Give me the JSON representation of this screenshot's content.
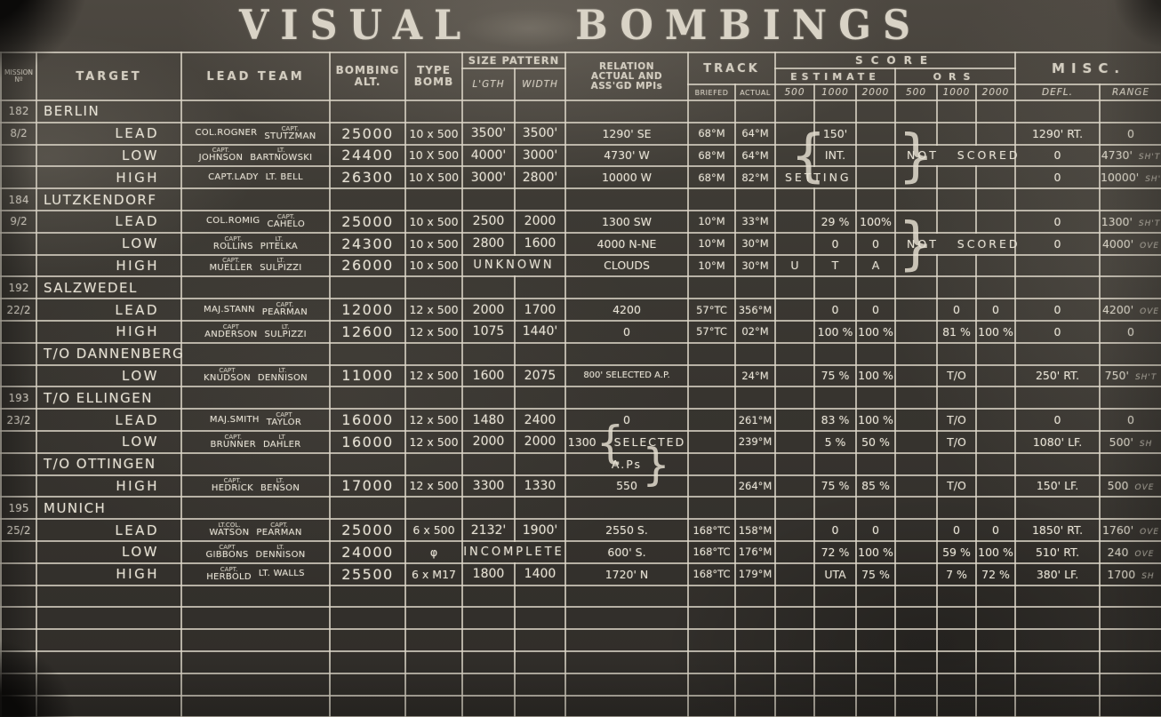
{
  "title": "VISUAL BOMBINGS",
  "colors": {
    "board": "#37342f",
    "chalk": "#e6e1d4",
    "grid_line": "#dcd6c8"
  },
  "header": {
    "mission_line1": "MISSION",
    "mission_line2": "Nº",
    "target": "TARGET",
    "lead_team": "LEAD TEAM",
    "bombing_alt_1": "BOMBING",
    "bombing_alt_2": "ALT.",
    "type_bomb_1": "TYPE",
    "type_bomb_2": "BOMB",
    "size_pattern": "SIZE PATTERN",
    "lgth": "L'GTH",
    "width": "WIDTH",
    "relation_1": "RELATION",
    "relation_2": "ACTUAL AND",
    "relation_3": "ASS'GD MPIs",
    "track": "TRACK",
    "briefed": "BRIEFED",
    "actual": "ACTUAL",
    "score": "SCORE",
    "estimate": "ESTIMATE",
    "ors": "ORS",
    "d500": "500",
    "d1000": "1000",
    "d2000": "2000",
    "misc": "MISC.",
    "defl": "DEFL.",
    "range": "RANGE"
  },
  "rows": [
    {
      "type": "section",
      "mission": "182",
      "target": "BERLIN"
    },
    {
      "type": "data",
      "mission": "8/2",
      "role": "LEAD",
      "team": [
        [
          "",
          "COL.ROGNER"
        ],
        [
          "CAPT.",
          "STUTZMAN"
        ]
      ],
      "alt": "25000",
      "bomb": "10 x 500",
      "lgth": "3500'",
      "width": "3500'",
      "rel": "1290' SE",
      "brf": "68°M",
      "act": "64°M",
      "e1000": "150'",
      "defl": "1290' RT.",
      "rng": "0"
    },
    {
      "type": "data",
      "mission": "",
      "role": "LOW",
      "team": [
        [
          "CAPT.",
          "JOHNSON"
        ],
        [
          "LT.",
          "BARTNOWSKI"
        ]
      ],
      "alt": "24400",
      "bomb": "10 X 500",
      "lgth": "4000'",
      "width": "3000'",
      "rel": "4730' W",
      "brf": "68°M",
      "act": "64°M",
      "ebl": true,
      "e1000": "INT.",
      "ors": "NOT SCORED",
      "orsbr": true,
      "defl": "0",
      "rng": "4730' SH'T"
    },
    {
      "type": "data",
      "mission": "",
      "role": "HIGH",
      "team": [
        [
          "",
          "CAPT.LADY"
        ],
        [
          "",
          "LT. BELL"
        ]
      ],
      "alt": "26300",
      "bomb": "10 X 500",
      "lgth": "3000'",
      "width": "2800'",
      "rel": "10000 W",
      "brf": "68°M",
      "act": "82°M",
      "e_span": "SETTING",
      "e_cols": 2,
      "defl": "0",
      "rng": "10000' SH'T"
    },
    {
      "type": "section",
      "mission": "184",
      "target": "LUTZKENDORF"
    },
    {
      "type": "data",
      "mission": "9/2",
      "role": "LEAD",
      "team": [
        [
          "",
          "COL.ROMIG"
        ],
        [
          "CAPT.",
          "CAHELO"
        ]
      ],
      "alt": "25000",
      "bomb": "10 x 500",
      "lgth": "2500",
      "width": "2000",
      "rel": "1300 SW",
      "brf": "10°M",
      "act": "33°M",
      "e1000": "29 %",
      "e2000": "100%",
      "defl": "0",
      "rng": "1300' SH'T"
    },
    {
      "type": "data",
      "mission": "",
      "role": "LOW",
      "team": [
        [
          "CAPT.",
          "ROLLINS"
        ],
        [
          "LT.",
          "PITELKA"
        ]
      ],
      "alt": "24300",
      "bomb": "10 x 500",
      "lgth": "2800",
      "width": "1600",
      "rel": "4000 N-NE",
      "brf": "10°M",
      "act": "30°M",
      "e1000": "0",
      "e2000": "0",
      "ors": "NOT SCORED",
      "orsbr": true,
      "defl": "0",
      "rng": "4000' OVE"
    },
    {
      "type": "data",
      "mission": "",
      "role": "HIGH",
      "team": [
        [
          "CAPT.",
          "MUELLER"
        ],
        [
          "LT.",
          "SULPIZZI"
        ]
      ],
      "alt": "26000",
      "bomb": "10 x 500",
      "size_span": "UNKNOWN",
      "rel": "CLOUDS",
      "brf": "10°M",
      "act": "30°M",
      "e500": "U",
      "e1000": "T",
      "e2000": "A",
      "defl": "",
      "rng": ""
    },
    {
      "type": "section",
      "mission": "192",
      "target": "SALZWEDEL"
    },
    {
      "type": "data",
      "mission": "22/2",
      "role": "LEAD",
      "team": [
        [
          "",
          "MAJ.STANN"
        ],
        [
          "CAPT.",
          "PEARMAN"
        ]
      ],
      "alt": "12000",
      "bomb": "12 x 500",
      "lgth": "2000",
      "width": "1700",
      "rel": "4200",
      "brf": "57°TC",
      "act": "356°M",
      "e1000": "0",
      "e2000": "0",
      "o1000": "0",
      "o2000": "0",
      "defl": "0",
      "rng": "4200' OVE"
    },
    {
      "type": "data",
      "mission": "",
      "role": "HIGH",
      "team": [
        [
          "CAPT",
          "ANDERSON"
        ],
        [
          "LT.",
          "SULPIZZI"
        ]
      ],
      "alt": "12600",
      "bomb": "12 x 500",
      "lgth": "1075",
      "width": "1440'",
      "rel": "0",
      "brf": "57°TC",
      "act": "02°M",
      "e1000": "100 %",
      "e2000": "100 %",
      "o1000": "81 %",
      "o2000": "100 %",
      "defl": "0",
      "rng": "0"
    },
    {
      "type": "section",
      "mission": "",
      "target": "T/O DANNENBERG"
    },
    {
      "type": "data",
      "mission": "",
      "role": "LOW",
      "team": [
        [
          "CAPT",
          "KNUDSON"
        ],
        [
          "LT.",
          "DENNISON"
        ]
      ],
      "alt": "11000",
      "bomb": "12 x 500",
      "lgth": "1600",
      "width": "2075",
      "rel": "800' SELECTED A.P.",
      "brf": "",
      "act": "24°M",
      "e1000": "75 %",
      "e2000": "100 %",
      "o1000": "T/O",
      "defl": "250' RT.",
      "rng": "750' SH'T"
    },
    {
      "type": "section",
      "mission": "193",
      "target": "T/O ELLINGEN"
    },
    {
      "type": "data",
      "mission": "23/2",
      "role": "LEAD",
      "team": [
        [
          "",
          "MAJ.SMITH"
        ],
        [
          "CAPT",
          "TAYLOR"
        ]
      ],
      "alt": "16000",
      "bomb": "12 x 500",
      "lgth": "1480",
      "width": "2400",
      "rel": "0",
      "brf": "",
      "act": "261°M",
      "e1000": "83 %",
      "e2000": "100 %",
      "o1000": "T/O",
      "defl": "0",
      "rng": "0"
    },
    {
      "type": "data",
      "mission": "",
      "role": "LOW",
      "team": [
        [
          "CAPT.",
          "BRUNNER"
        ],
        [
          "LT",
          "DAHLER"
        ]
      ],
      "alt": "16000",
      "bomb": "12 x 500",
      "lgth": "2000",
      "width": "2000",
      "rel": "1300",
      "relbr": "{",
      "rel2": "SELECTED",
      "brf": "",
      "act": "239°M",
      "e1000": "5 %",
      "e2000": "50 %",
      "o1000": "T/O",
      "defl": "1080' LF.",
      "rng": "500' SH"
    },
    {
      "type": "section",
      "mission": "",
      "target": "T/O OTTINGEN",
      "rel2": "A.Ps",
      "relbr2": "}"
    },
    {
      "type": "data",
      "mission": "",
      "role": "HIGH",
      "team": [
        [
          "CAPT.",
          "HEDRICK"
        ],
        [
          "LT.",
          "BENSON"
        ]
      ],
      "alt": "17000",
      "bomb": "12 x 500",
      "lgth": "3300",
      "width": "1330",
      "rel": "550",
      "brf": "",
      "act": "264°M",
      "e1000": "75 %",
      "e2000": "85 %",
      "o1000": "T/O",
      "defl": "150' LF.",
      "rng": "500 OVE"
    },
    {
      "type": "section",
      "mission": "195",
      "target": "MUNICH"
    },
    {
      "type": "data",
      "mission": "25/2",
      "role": "LEAD",
      "team": [
        [
          "LT.COL.",
          "WATSON"
        ],
        [
          "CAPT.",
          "PEARMAN"
        ]
      ],
      "alt": "25000",
      "bomb": "6 x 500",
      "lgth": "2132'",
      "width": "1900'",
      "rel": "2550 S.",
      "brf": "168°TC",
      "act": "158°M",
      "e1000": "0",
      "e2000": "0",
      "o1000": "0",
      "o2000": "0",
      "defl": "1850' RT.",
      "rng": "1760' OVE"
    },
    {
      "type": "data",
      "mission": "",
      "role": "LOW",
      "team": [
        [
          "CAPT",
          "GIBBONS"
        ],
        [
          "LT.",
          "DENNISON"
        ]
      ],
      "alt": "24000",
      "bomb": "φ",
      "size_span": "INCOMPLETE",
      "rel": "600' S.",
      "brf": "168°TC",
      "act": "176°M",
      "e1000": "72 %",
      "e2000": "100 %",
      "o1000": "59 %",
      "o2000": "100 %",
      "defl": "510' RT.",
      "rng": "240 OVE"
    },
    {
      "type": "data",
      "mission": "",
      "role": "HIGH",
      "team": [
        [
          "CAPT.",
          "HERBOLD"
        ],
        [
          "",
          "LT. WALLS"
        ]
      ],
      "alt": "25500",
      "bomb": "6 x M17",
      "lgth": "1800",
      "width": "1400",
      "rel": "1720' N",
      "brf": "168°TC",
      "act": "179°M",
      "e1000": "UTA",
      "e2000": "75 %",
      "o1000": "7 %",
      "o2000": "72 %",
      "defl": "380' LF.",
      "rng": "1700 SH"
    },
    {
      "type": "empty"
    },
    {
      "type": "empty"
    },
    {
      "type": "empty"
    },
    {
      "type": "empty"
    },
    {
      "type": "empty"
    },
    {
      "type": "empty"
    }
  ]
}
